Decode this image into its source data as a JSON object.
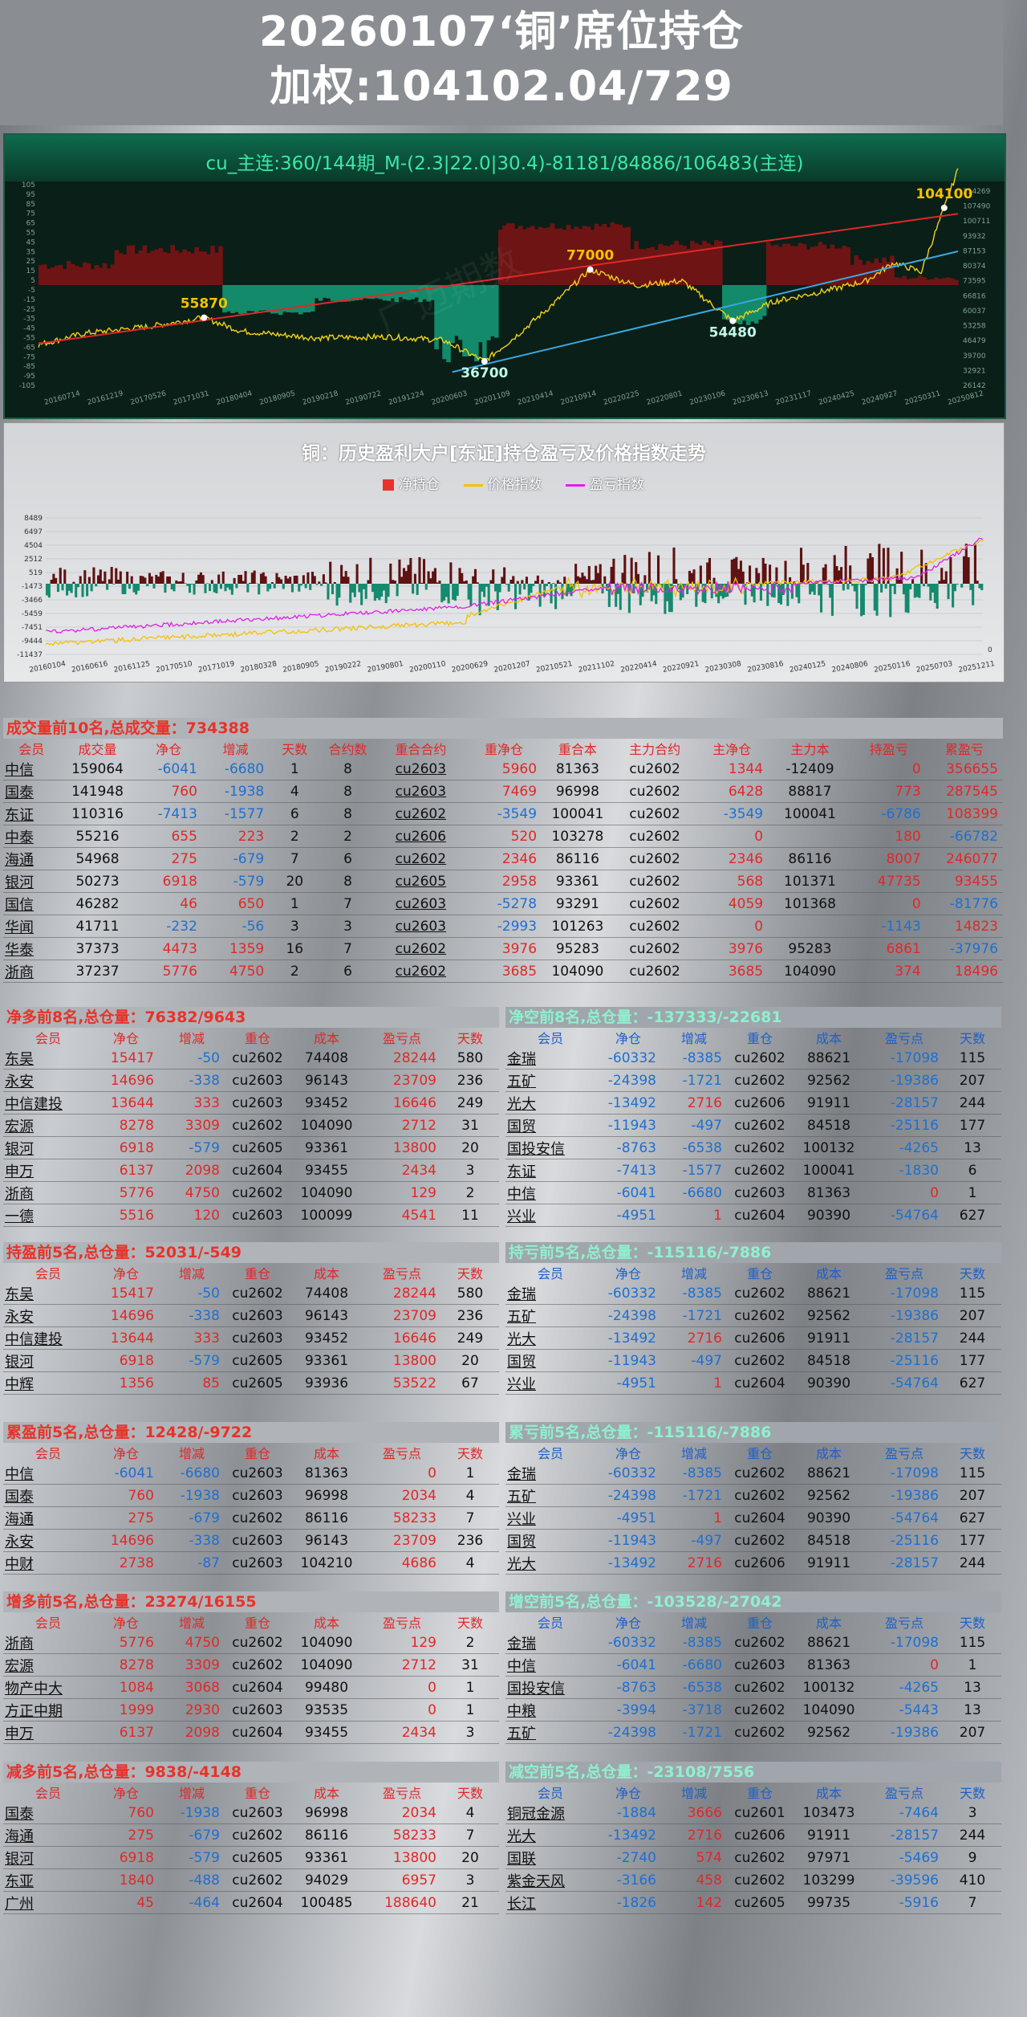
{
  "header": {
    "line1": "20260107‘铜’席位持仓",
    "line2": "加权:104102.04/729"
  },
  "chart_data": [
    {
      "type": "line",
      "title": "cu_主连:360/144期_M-(2.3|22.0|30.4)-81181/84886/106483(主连)",
      "left_ticks": [
        "105",
        "95",
        "85",
        "75",
        "65",
        "55",
        "45",
        "35",
        "25",
        "15",
        "5",
        "-5",
        "-15",
        "-25",
        "-35",
        "-45",
        "-55",
        "-65",
        "-75",
        "-85",
        "-95",
        "-105"
      ],
      "right_ticks": [
        "114269",
        "107490",
        "100711",
        "93932",
        "87153",
        "80374",
        "73595",
        "66816",
        "60037",
        "53258",
        "46479",
        "39700",
        "32921",
        "26142"
      ],
      "x_ticks": [
        "20160714",
        "20161219",
        "20170526",
        "20171031",
        "20180404",
        "20180905",
        "20190218",
        "20190722",
        "20191224",
        "20200603",
        "20201109",
        "20210414",
        "20210914",
        "20220225",
        "20220801",
        "20230106",
        "20230613",
        "20231117",
        "20240425",
        "20240927",
        "20250311",
        "20250812"
      ],
      "annotations": [
        {
          "label": "55870",
          "x": 0.18,
          "value": 55870
        },
        {
          "label": "36700",
          "x": 0.485,
          "value": 36700
        },
        {
          "label": "77000",
          "x": 0.6,
          "value": 77000
        },
        {
          "label": "54480",
          "x": 0.755,
          "value": 54480
        },
        {
          "label": "104100",
          "x": 0.985,
          "value": 104100
        }
      ],
      "watermark": "广迈期数"
    },
    {
      "type": "line",
      "title": "铜：历史盈利大户[东证]持仓盈亏及价格指数走势",
      "legend": [
        "净持仓",
        "价格指数",
        "盈亏指数"
      ],
      "colors": {
        "net": "#e8322a",
        "price": "#f2c200",
        "pnl": "#e020e8"
      },
      "left_ticks": [
        "8489",
        "6497",
        "4504",
        "2512",
        "519",
        "-1473",
        "-3466",
        "-5459",
        "-7451",
        "-9444",
        "-11437"
      ],
      "right_ticks": [
        "0"
      ],
      "x_ticks": [
        "20160104",
        "20160616",
        "20161125",
        "20170510",
        "20171019",
        "20180328",
        "20180905",
        "20190222",
        "20190801",
        "20200110",
        "20200629",
        "20201207",
        "20210521",
        "20211102",
        "20220414",
        "20220921",
        "20230308",
        "20230816",
        "20240125",
        "20240806",
        "20250116",
        "20250703",
        "20251211"
      ]
    }
  ],
  "volume": {
    "caption": "成交量前10名,总成交量：734388",
    "columns": [
      "会员",
      "成交量",
      "净仓",
      "增减",
      "天数",
      "合约数",
      "重合合约",
      "重净仓",
      "重合本",
      "主力合约",
      "主净仓",
      "主力本",
      "持盈亏",
      "累盈亏"
    ],
    "rows": [
      [
        "中信",
        "159064",
        "-6041",
        "-6680",
        "1",
        "8",
        "cu2603",
        "5960",
        "81363",
        "cu2602",
        "1344",
        "-12409",
        "0",
        "356655"
      ],
      [
        "国泰",
        "141948",
        "760",
        "-1938",
        "4",
        "8",
        "cu2603",
        "7469",
        "96998",
        "cu2602",
        "6428",
        "88817",
        "773",
        "287545"
      ],
      [
        "东证",
        "110316",
        "-7413",
        "-1577",
        "6",
        "8",
        "cu2602",
        "-3549",
        "100041",
        "cu2602",
        "-3549",
        "100041",
        "-6786",
        "108399"
      ],
      [
        "中泰",
        "55216",
        "655",
        "223",
        "2",
        "2",
        "cu2606",
        "520",
        "103278",
        "cu2602",
        "0",
        "",
        "180",
        "-66782"
      ],
      [
        "海通",
        "54968",
        "275",
        "-679",
        "7",
        "6",
        "cu2602",
        "2346",
        "86116",
        "cu2602",
        "2346",
        "86116",
        "8007",
        "246077"
      ],
      [
        "银河",
        "50273",
        "6918",
        "-579",
        "20",
        "8",
        "cu2605",
        "2958",
        "93361",
        "cu2602",
        "568",
        "101371",
        "47735",
        "93455"
      ],
      [
        "国信",
        "46282",
        "46",
        "650",
        "1",
        "7",
        "cu2603",
        "-5278",
        "93291",
        "cu2602",
        "4059",
        "101368",
        "0",
        "-81776"
      ],
      [
        "华闻",
        "41711",
        "-232",
        "-56",
        "3",
        "3",
        "cu2603",
        "-2993",
        "101263",
        "cu2602",
        "0",
        "",
        "-1143",
        "14823"
      ],
      [
        "华泰",
        "37373",
        "4473",
        "1359",
        "16",
        "7",
        "cu2602",
        "3976",
        "95283",
        "cu2602",
        "3976",
        "95283",
        "6861",
        "-37976"
      ],
      [
        "浙商",
        "37237",
        "5776",
        "4750",
        "2",
        "6",
        "cu2602",
        "3685",
        "104090",
        "cu2602",
        "3685",
        "104090",
        "374",
        "18496"
      ]
    ]
  },
  "tables": [
    {
      "caption": "净多前8名,总仓量：76382/9643",
      "side": "r",
      "columns": [
        "会员",
        "净仓",
        "增减",
        "重仓",
        "成本",
        "盈亏点",
        "天数"
      ],
      "rows": [
        [
          "东吴",
          "15417",
          "-50",
          "cu2602",
          "74408",
          "28244",
          "580"
        ],
        [
          "永安",
          "14696",
          "-338",
          "cu2603",
          "96143",
          "23709",
          "236"
        ],
        [
          "中信建投",
          "13644",
          "333",
          "cu2603",
          "93452",
          "16646",
          "249"
        ],
        [
          "宏源",
          "8278",
          "3309",
          "cu2602",
          "104090",
          "2712",
          "31"
        ],
        [
          "银河",
          "6918",
          "-579",
          "cu2605",
          "93361",
          "13800",
          "20"
        ],
        [
          "申万",
          "6137",
          "2098",
          "cu2604",
          "93455",
          "2434",
          "3"
        ],
        [
          "浙商",
          "5776",
          "4750",
          "cu2602",
          "104090",
          "129",
          "2"
        ],
        [
          "一德",
          "5516",
          "120",
          "cu2603",
          "100099",
          "4541",
          "11"
        ]
      ]
    },
    {
      "caption": "净空前8名,总仓量：-137333/-22681",
      "side": "b",
      "columns": [
        "会员",
        "净仓",
        "增减",
        "重仓",
        "成本",
        "盈亏点",
        "天数"
      ],
      "rows": [
        [
          "金瑞",
          "-60332",
          "-8385",
          "cu2602",
          "88621",
          "-17098",
          "115"
        ],
        [
          "五矿",
          "-24398",
          "-1721",
          "cu2602",
          "92562",
          "-19386",
          "207"
        ],
        [
          "光大",
          "-13492",
          "2716",
          "cu2606",
          "91911",
          "-28157",
          "244"
        ],
        [
          "国贸",
          "-11943",
          "-497",
          "cu2602",
          "84518",
          "-25116",
          "177"
        ],
        [
          "国投安信",
          "-8763",
          "-6538",
          "cu2602",
          "100132",
          "-4265",
          "13"
        ],
        [
          "东证",
          "-7413",
          "-1577",
          "cu2602",
          "100041",
          "-1830",
          "6"
        ],
        [
          "中信",
          "-6041",
          "-6680",
          "cu2603",
          "81363",
          "0",
          "1"
        ],
        [
          "兴业",
          "-4951",
          "1",
          "cu2604",
          "90390",
          "-54764",
          "627"
        ]
      ]
    },
    {
      "caption": "持盈前5名,总仓量：52031/-549",
      "side": "r",
      "columns": [
        "会员",
        "净仓",
        "增减",
        "重仓",
        "成本",
        "盈亏点",
        "天数"
      ],
      "rows": [
        [
          "东吴",
          "15417",
          "-50",
          "cu2602",
          "74408",
          "28244",
          "580"
        ],
        [
          "永安",
          "14696",
          "-338",
          "cu2603",
          "96143",
          "23709",
          "236"
        ],
        [
          "中信建投",
          "13644",
          "333",
          "cu2603",
          "93452",
          "16646",
          "249"
        ],
        [
          "银河",
          "6918",
          "-579",
          "cu2605",
          "93361",
          "13800",
          "20"
        ],
        [
          "中辉",
          "1356",
          "85",
          "cu2605",
          "93936",
          "53522",
          "67"
        ]
      ]
    },
    {
      "caption": "持亏前5名,总仓量：-115116/-7886",
      "side": "b",
      "columns": [
        "会员",
        "净仓",
        "增减",
        "重仓",
        "成本",
        "盈亏点",
        "天数"
      ],
      "rows": [
        [
          "金瑞",
          "-60332",
          "-8385",
          "cu2602",
          "88621",
          "-17098",
          "115"
        ],
        [
          "五矿",
          "-24398",
          "-1721",
          "cu2602",
          "92562",
          "-19386",
          "207"
        ],
        [
          "光大",
          "-13492",
          "2716",
          "cu2606",
          "91911",
          "-28157",
          "244"
        ],
        [
          "国贸",
          "-11943",
          "-497",
          "cu2602",
          "84518",
          "-25116",
          "177"
        ],
        [
          "兴业",
          "-4951",
          "1",
          "cu2604",
          "90390",
          "-54764",
          "627"
        ]
      ]
    },
    {
      "caption": "累盈前5名,总仓量：12428/-9722",
      "side": "r",
      "columns": [
        "会员",
        "净仓",
        "增减",
        "重仓",
        "成本",
        "盈亏点",
        "天数"
      ],
      "rows": [
        [
          "中信",
          "-6041",
          "-6680",
          "cu2603",
          "81363",
          "0",
          "1"
        ],
        [
          "国泰",
          "760",
          "-1938",
          "cu2603",
          "96998",
          "2034",
          "4"
        ],
        [
          "海通",
          "275",
          "-679",
          "cu2602",
          "86116",
          "58233",
          "7"
        ],
        [
          "永安",
          "14696",
          "-338",
          "cu2603",
          "96143",
          "23709",
          "236"
        ],
        [
          "中财",
          "2738",
          "-87",
          "cu2603",
          "104210",
          "4686",
          "4"
        ]
      ]
    },
    {
      "caption": "累亏前5名,总仓量：-115116/-7886",
      "side": "b",
      "columns": [
        "会员",
        "净仓",
        "增减",
        "重仓",
        "成本",
        "盈亏点",
        "天数"
      ],
      "rows": [
        [
          "金瑞",
          "-60332",
          "-8385",
          "cu2602",
          "88621",
          "-17098",
          "115"
        ],
        [
          "五矿",
          "-24398",
          "-1721",
          "cu2602",
          "92562",
          "-19386",
          "207"
        ],
        [
          "兴业",
          "-4951",
          "1",
          "cu2604",
          "90390",
          "-54764",
          "627"
        ],
        [
          "国贸",
          "-11943",
          "-497",
          "cu2602",
          "84518",
          "-25116",
          "177"
        ],
        [
          "光大",
          "-13492",
          "2716",
          "cu2606",
          "91911",
          "-28157",
          "244"
        ]
      ]
    },
    {
      "caption": "增多前5名,总仓量：23274/16155",
      "side": "r",
      "columns": [
        "会员",
        "净仓",
        "增减",
        "重仓",
        "成本",
        "盈亏点",
        "天数"
      ],
      "rows": [
        [
          "浙商",
          "5776",
          "4750",
          "cu2602",
          "104090",
          "129",
          "2"
        ],
        [
          "宏源",
          "8278",
          "3309",
          "cu2602",
          "104090",
          "2712",
          "31"
        ],
        [
          "物产中大",
          "1084",
          "3068",
          "cu2604",
          "99480",
          "0",
          "1"
        ],
        [
          "方正中期",
          "1999",
          "2930",
          "cu2603",
          "93535",
          "0",
          "1"
        ],
        [
          "申万",
          "6137",
          "2098",
          "cu2604",
          "93455",
          "2434",
          "3"
        ]
      ]
    },
    {
      "caption": "增空前5名,总仓量：-103528/-27042",
      "side": "b",
      "columns": [
        "会员",
        "净仓",
        "增减",
        "重仓",
        "成本",
        "盈亏点",
        "天数"
      ],
      "rows": [
        [
          "金瑞",
          "-60332",
          "-8385",
          "cu2602",
          "88621",
          "-17098",
          "115"
        ],
        [
          "中信",
          "-6041",
          "-6680",
          "cu2603",
          "81363",
          "0",
          "1"
        ],
        [
          "国投安信",
          "-8763",
          "-6538",
          "cu2602",
          "100132",
          "-4265",
          "13"
        ],
        [
          "中粮",
          "-3994",
          "-3718",
          "cu2602",
          "104090",
          "-5443",
          "13"
        ],
        [
          "五矿",
          "-24398",
          "-1721",
          "cu2602",
          "92562",
          "-19386",
          "207"
        ]
      ]
    },
    {
      "caption": "减多前5名,总仓量：9838/-4148",
      "side": "r",
      "columns": [
        "会员",
        "净仓",
        "增减",
        "重仓",
        "成本",
        "盈亏点",
        "天数"
      ],
      "rows": [
        [
          "国泰",
          "760",
          "-1938",
          "cu2603",
          "96998",
          "2034",
          "4"
        ],
        [
          "海通",
          "275",
          "-679",
          "cu2602",
          "86116",
          "58233",
          "7"
        ],
        [
          "银河",
          "6918",
          "-579",
          "cu2605",
          "93361",
          "13800",
          "20"
        ],
        [
          "东亚",
          "1840",
          "-488",
          "cu2602",
          "94029",
          "6957",
          "3"
        ],
        [
          "广州",
          "45",
          "-464",
          "cu2604",
          "100485",
          "188640",
          "21"
        ]
      ]
    },
    {
      "caption": "减空前5名,总仓量：-23108/7556",
      "side": "b",
      "columns": [
        "会员",
        "净仓",
        "增减",
        "重仓",
        "成本",
        "盈亏点",
        "天数"
      ],
      "rows": [
        [
          "铜冠金源",
          "-1884",
          "3666",
          "cu2601",
          "103473",
          "-7464",
          "3"
        ],
        [
          "光大",
          "-13492",
          "2716",
          "cu2606",
          "91911",
          "-28157",
          "244"
        ],
        [
          "国联",
          "-2740",
          "574",
          "cu2602",
          "97971",
          "-5469",
          "9"
        ],
        [
          "紫金天风",
          "-3166",
          "458",
          "cu2602",
          "103299",
          "-39596",
          "410"
        ],
        [
          "长江",
          "-1826",
          "142",
          "cu2605",
          "99735",
          "-5916",
          "7"
        ]
      ]
    }
  ]
}
